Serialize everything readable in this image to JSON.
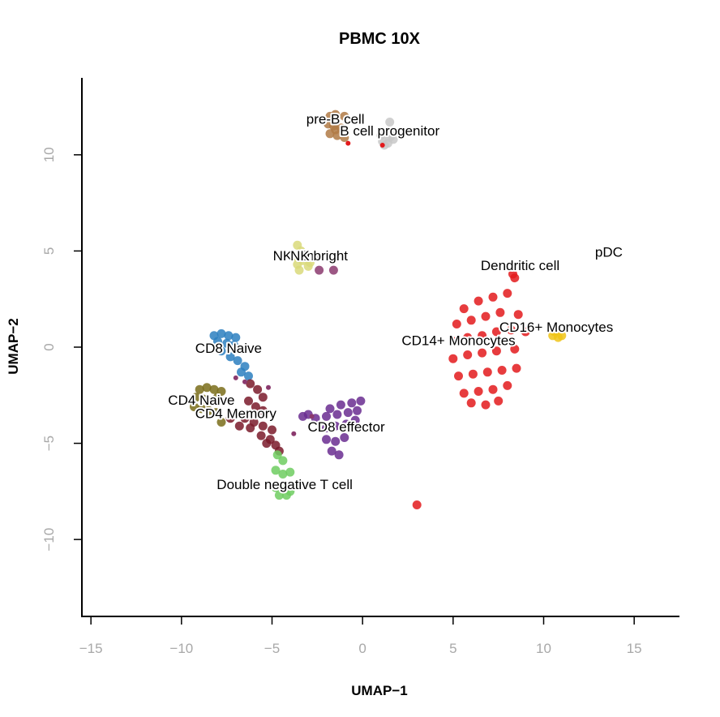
{
  "chart_data": {
    "type": "scatter",
    "title": "PBMC 10X",
    "xlabel": "UMAP−1",
    "ylabel": "UMAP−2",
    "xlim": [
      -15.5,
      17.5
    ],
    "ylim": [
      -14,
      14
    ],
    "xticks": [
      -15,
      -10,
      -5,
      0,
      5,
      10,
      15
    ],
    "xtick_labels": [
      "−15",
      "−10",
      "−5",
      "0",
      "5",
      "10",
      "15"
    ],
    "yticks": [
      -10,
      -5,
      0,
      5,
      10
    ],
    "ytick_labels": [
      "−10",
      "−5",
      "0",
      "5",
      "10"
    ],
    "grid": false,
    "legend": "none",
    "clusters": [
      {
        "name": "pre-B cell",
        "color": "#b07a45",
        "label_x": -1.5,
        "label_y": 11.8,
        "points": [
          [
            -1.8,
            12.0
          ],
          [
            -1.5,
            12.1
          ],
          [
            -1.0,
            12.0
          ],
          [
            -1.9,
            11.6
          ],
          [
            -1.6,
            11.5
          ],
          [
            -1.2,
            11.4
          ],
          [
            -1.8,
            11.1
          ],
          [
            -1.4,
            11.0
          ],
          [
            -1.0,
            10.9
          ],
          [
            -1.5,
            11.3
          ]
        ]
      },
      {
        "name": "B cell progenitor",
        "color": "#c8c8c8",
        "label_x": 1.5,
        "label_y": 11.2,
        "points": [
          [
            1.0,
            11.0
          ],
          [
            1.3,
            11.1
          ],
          [
            1.6,
            11.0
          ],
          [
            1.1,
            10.7
          ],
          [
            1.4,
            10.6
          ],
          [
            1.7,
            10.8
          ],
          [
            1.2,
            10.5
          ],
          [
            1.5,
            11.7
          ],
          [
            1.5,
            10.9
          ]
        ]
      },
      {
        "name": "NK dim",
        "color": "#d9d97a",
        "label_x": -3.7,
        "label_y": 4.7,
        "points": [
          [
            -3.6,
            5.3
          ],
          [
            -3.4,
            5.0
          ],
          [
            -3.7,
            4.7
          ],
          [
            -3.3,
            4.5
          ],
          [
            -3.6,
            4.3
          ],
          [
            -3.0,
            4.2
          ],
          [
            -3.5,
            4.0
          ],
          [
            -3.2,
            4.8
          ],
          [
            -2.9,
            4.4
          ]
        ]
      },
      {
        "name": "NK bright",
        "color": "#8b3a6e",
        "label_x": -2.4,
        "label_y": 4.7,
        "points": [
          [
            -2.4,
            4.0
          ],
          [
            -1.6,
            4.0
          ]
        ]
      },
      {
        "name": "CD8 Naive",
        "color": "#2b7fc0",
        "label_x": -7.4,
        "label_y": -0.1,
        "points": [
          [
            -8.2,
            0.6
          ],
          [
            -7.8,
            0.7
          ],
          [
            -7.4,
            0.6
          ],
          [
            -7.0,
            0.5
          ],
          [
            -8.0,
            0.3
          ],
          [
            -7.5,
            0.2
          ],
          [
            -7.1,
            0.1
          ],
          [
            -7.8,
            -0.2
          ],
          [
            -7.3,
            -0.5
          ],
          [
            -6.9,
            -0.7
          ],
          [
            -6.5,
            -1.0
          ],
          [
            -6.7,
            -1.3
          ],
          [
            -6.3,
            -1.5
          ]
        ]
      },
      {
        "name": "CD4 Naive",
        "color": "#7a6d1a",
        "label_x": -8.9,
        "label_y": -2.8,
        "points": [
          [
            -9.0,
            -2.2
          ],
          [
            -8.6,
            -2.1
          ],
          [
            -8.2,
            -2.2
          ],
          [
            -7.8,
            -2.3
          ],
          [
            -9.2,
            -2.6
          ],
          [
            -8.8,
            -2.7
          ],
          [
            -8.4,
            -2.8
          ],
          [
            -8.0,
            -2.6
          ],
          [
            -9.3,
            -3.1
          ],
          [
            -8.9,
            -3.2
          ],
          [
            -8.5,
            -3.3
          ],
          [
            -8.1,
            -3.4
          ],
          [
            -7.8,
            -3.9
          ]
        ]
      },
      {
        "name": "CD4 Memory",
        "color": "#7a1a2a",
        "label_x": -7.0,
        "label_y": -3.5,
        "points": [
          [
            -6.2,
            -1.9
          ],
          [
            -5.8,
            -2.2
          ],
          [
            -5.5,
            -2.6
          ],
          [
            -6.3,
            -2.8
          ],
          [
            -5.9,
            -3.1
          ],
          [
            -5.5,
            -3.3
          ],
          [
            -7.0,
            -3.5
          ],
          [
            -6.5,
            -3.7
          ],
          [
            -6.0,
            -3.9
          ],
          [
            -5.5,
            -4.1
          ],
          [
            -5.0,
            -4.3
          ],
          [
            -6.2,
            -4.2
          ],
          [
            -5.6,
            -4.6
          ],
          [
            -5.1,
            -4.8
          ],
          [
            -4.8,
            -5.1
          ],
          [
            -4.6,
            -5.4
          ],
          [
            -5.3,
            -5.0
          ],
          [
            -6.8,
            -4.1
          ],
          [
            -7.3,
            -3.7
          ]
        ]
      },
      {
        "name": "CD8 effector",
        "color": "#6a2d90",
        "label_x": -0.9,
        "label_y": -4.2,
        "points": [
          [
            -1.8,
            -3.2
          ],
          [
            -1.2,
            -3.0
          ],
          [
            -0.6,
            -2.9
          ],
          [
            -0.1,
            -2.8
          ],
          [
            -2.0,
            -3.6
          ],
          [
            -1.4,
            -3.5
          ],
          [
            -0.8,
            -3.4
          ],
          [
            -0.3,
            -3.3
          ],
          [
            -2.0,
            -4.2
          ],
          [
            -1.5,
            -4.1
          ],
          [
            -0.9,
            -4.0
          ],
          [
            -0.4,
            -3.8
          ],
          [
            -2.0,
            -4.8
          ],
          [
            -1.5,
            -4.9
          ],
          [
            -1.0,
            -4.7
          ],
          [
            -1.7,
            -5.4
          ],
          [
            -1.3,
            -5.6
          ],
          [
            -3.0,
            -3.5
          ],
          [
            -3.3,
            -3.6
          ],
          [
            -2.6,
            -3.7
          ]
        ]
      },
      {
        "name": "Double negative T cell",
        "color": "#6fcc60",
        "label_x": -4.3,
        "label_y": -7.2,
        "points": [
          [
            -4.7,
            -5.6
          ],
          [
            -4.4,
            -5.9
          ],
          [
            -4.8,
            -6.4
          ],
          [
            -4.4,
            -6.6
          ],
          [
            -4.0,
            -6.5
          ],
          [
            -4.8,
            -7.3
          ],
          [
            -4.3,
            -7.4
          ],
          [
            -4.0,
            -7.5
          ],
          [
            -4.6,
            -7.7
          ],
          [
            -4.2,
            -7.7
          ]
        ]
      },
      {
        "name": "CD14+ Monocytes",
        "color": "#e31a1c",
        "label_x": 5.3,
        "label_y": 0.3,
        "points": [
          [
            5.6,
            2.0
          ],
          [
            6.4,
            2.4
          ],
          [
            7.2,
            2.6
          ],
          [
            8.0,
            2.8
          ],
          [
            8.4,
            3.6
          ],
          [
            5.2,
            1.2
          ],
          [
            6.0,
            1.4
          ],
          [
            6.8,
            1.6
          ],
          [
            7.6,
            1.8
          ],
          [
            8.6,
            1.7
          ],
          [
            5.0,
            0.3
          ],
          [
            5.8,
            0.5
          ],
          [
            6.6,
            0.6
          ],
          [
            7.4,
            0.8
          ],
          [
            8.2,
            0.9
          ],
          [
            9.0,
            0.8
          ],
          [
            5.0,
            -0.6
          ],
          [
            5.8,
            -0.4
          ],
          [
            6.6,
            -0.3
          ],
          [
            7.4,
            -0.2
          ],
          [
            8.4,
            -0.1
          ],
          [
            5.3,
            -1.5
          ],
          [
            6.1,
            -1.4
          ],
          [
            6.9,
            -1.3
          ],
          [
            7.7,
            -1.2
          ],
          [
            8.5,
            -1.1
          ],
          [
            5.6,
            -2.4
          ],
          [
            6.4,
            -2.3
          ],
          [
            7.2,
            -2.2
          ],
          [
            8.0,
            -2.0
          ],
          [
            6.0,
            -2.9
          ],
          [
            6.8,
            -3.0
          ],
          [
            7.5,
            -2.8
          ],
          [
            3.0,
            -8.2
          ]
        ]
      },
      {
        "name": "CD16+ Monocytes",
        "color": "#f0c419",
        "label_x": 10.7,
        "label_y": 1.0,
        "points": [
          [
            10.5,
            0.6
          ],
          [
            10.8,
            0.5
          ],
          [
            11.0,
            0.6
          ],
          [
            10.6,
            0.8
          ]
        ]
      },
      {
        "name": "Dendritic cell",
        "color": "#e31a1c",
        "label_x": 8.7,
        "label_y": 4.2,
        "points": [
          [
            8.3,
            3.8
          ]
        ]
      },
      {
        "name": "pDC",
        "color": "#e31a1c",
        "label_x": 13.6,
        "label_y": 4.9,
        "points": []
      }
    ],
    "stray_points": [
      {
        "color": "#e31a1c",
        "points": [
          [
            -0.8,
            10.6
          ],
          [
            1.1,
            10.5
          ]
        ]
      },
      {
        "color": "#8b3a6e",
        "points": [
          [
            -5.2,
            -2.1
          ],
          [
            -6.5,
            -1.8
          ],
          [
            -7.0,
            -1.6
          ],
          [
            -3.8,
            -4.5
          ],
          [
            -2.8,
            -3.6
          ]
        ]
      }
    ]
  }
}
